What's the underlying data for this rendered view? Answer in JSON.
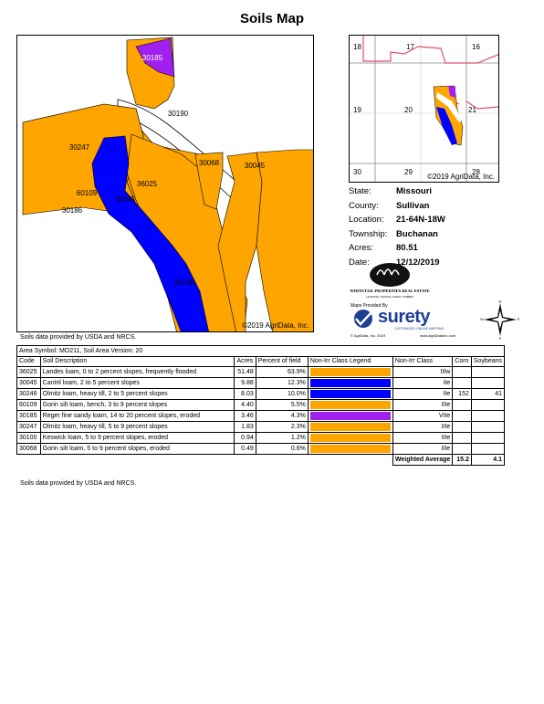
{
  "title": "Soils Map",
  "main_map": {
    "credit": "©2019 AgriData, Inc.",
    "labels": [
      "30185",
      "30190",
      "30247",
      "36025",
      "30068",
      "30045",
      "60109",
      "30045",
      "30186",
      "30246"
    ]
  },
  "inset_map": {
    "credit": "©2019 AgriData, Inc.",
    "sections": [
      "18",
      "17",
      "16",
      "19",
      "20",
      "21",
      "30",
      "29",
      "28"
    ]
  },
  "info": [
    {
      "label": "State:",
      "value": "Missouri"
    },
    {
      "label": "County:",
      "value": "Sullivan"
    },
    {
      "label": "Location:",
      "value": "21-64N-18W"
    },
    {
      "label": "Township:",
      "value": "Buchanan"
    },
    {
      "label": "Acres:",
      "value": "80.51"
    },
    {
      "label": "Date:",
      "value": "12/12/2019"
    }
  ],
  "logos": {
    "whitetail": "WHITETAIL PROPERTIES REAL ESTATE",
    "whitetail_sub": "HUNTING | RANCH | FARM | TIMBER",
    "maps_provided_by": "Maps Provided By",
    "surety": "surety",
    "surety_sub": "CUSTOMIZED ONLINE MAPPING",
    "surety_credit": "© AgriData, Inc. 2019",
    "surety_url": "www.AgriDataInc.com",
    "compass": {
      "n": "N",
      "s": "S",
      "e": "E",
      "w": "W"
    }
  },
  "usda_note": "Soils data provided by USDA and NRCS.",
  "table": {
    "area_symbol": "Area Symbol: MO211, Soil Area Version: 20",
    "headers": [
      "Code",
      "Soil Description",
      "Acres",
      "Percent of field",
      "Non-Irr Class Legend",
      "Non-Irr Class",
      "Corn",
      "Soybeans"
    ],
    "rows": [
      {
        "code": "36025",
        "desc": "Landes loam, 0 to 2 percent slopes, frequently flooded",
        "acres": "51.48",
        "pct": "63.9%",
        "color": "#ffa500",
        "cls": "IIIw",
        "corn": "",
        "soy": ""
      },
      {
        "code": "30045",
        "desc": "Cantril loam, 2 to 5 percent slopes",
        "acres": "9.88",
        "pct": "12.3%",
        "color": "#0000ff",
        "cls": "IIe",
        "corn": "",
        "soy": ""
      },
      {
        "code": "30246",
        "desc": "Olmitz loam, heavy till, 2 to 5 percent slopes",
        "acres": "8.03",
        "pct": "10.0%",
        "color": "#0000ff",
        "cls": "IIe",
        "corn": "152",
        "soy": "41"
      },
      {
        "code": "60109",
        "desc": "Gorin silt loam, bench, 3 to 9 percent slopes",
        "acres": "4.40",
        "pct": "5.5%",
        "color": "#ffa500",
        "cls": "IIIe",
        "corn": "",
        "soy": ""
      },
      {
        "code": "30185",
        "desc": "Reger fine sandy loam, 14 to 20 percent slopes, eroded",
        "acres": "3.46",
        "pct": "4.3%",
        "color": "#a020f0",
        "cls": "VIIe",
        "corn": "",
        "soy": ""
      },
      {
        "code": "30247",
        "desc": "Olmitz loam, heavy till, 5 to 9 percent slopes",
        "acres": "1.83",
        "pct": "2.3%",
        "color": "#ffa500",
        "cls": "IIIe",
        "corn": "",
        "soy": ""
      },
      {
        "code": "30100",
        "desc": "Keswick loam, 5 to 9 percent slopes, eroded",
        "acres": "0.94",
        "pct": "1.2%",
        "color": "#ffa500",
        "cls": "IIIe",
        "corn": "",
        "soy": ""
      },
      {
        "code": "30068",
        "desc": "Gorin silt loam, 5 to 9 percent slopes, eroded",
        "acres": "0.49",
        "pct": "0.6%",
        "color": "#ffa500",
        "cls": "IIIe",
        "corn": "",
        "soy": ""
      }
    ],
    "weighted_label": "Weighted Average",
    "weighted_corn": "15.2",
    "weighted_soy": "4.1"
  }
}
